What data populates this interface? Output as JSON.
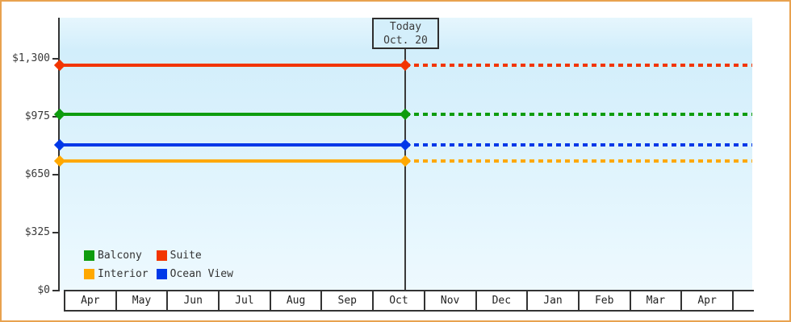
{
  "frame": {
    "border_color": "#e8a24f"
  },
  "chart_data": {
    "type": "line",
    "title": "",
    "x_categories": [
      "Apr",
      "May",
      "Jun",
      "Jul",
      "Aug",
      "Sep",
      "Oct",
      "Nov",
      "Dec",
      "Jan",
      "Feb",
      "Mar",
      "Apr"
    ],
    "y_axis": {
      "ticks": [
        {
          "label": "$0",
          "value": 0
        },
        {
          "label": "$325",
          "value": 325
        },
        {
          "label": "$650",
          "value": 650
        },
        {
          "label": "$975",
          "value": 975
        },
        {
          "label": "$1,300",
          "value": 1300
        }
      ],
      "ylim": [
        0,
        1300
      ]
    },
    "series": [
      {
        "name": "Suite",
        "color": "#f23500",
        "value": 1265,
        "style": "solid-then-dashed"
      },
      {
        "name": "Balcony",
        "color": "#0e9c0e",
        "value": 990,
        "style": "solid-then-dashed"
      },
      {
        "name": "Ocean View",
        "color": "#0038e8",
        "value": 815,
        "style": "solid-then-dashed"
      },
      {
        "name": "Interior",
        "color": "#ffa800",
        "value": 725,
        "style": "solid-then-dashed"
      }
    ],
    "today": {
      "label_line1": "Today",
      "label_line2": "Oct. 20",
      "month": "Oct",
      "day": 20
    },
    "annotations": "solid lines left of Today marker, dashed projection to the right; diamond markers at axis start and at Today line",
    "legend_position": "bottom-left-inside",
    "grid": false
  },
  "legend": {
    "items": [
      {
        "label": "Balcony",
        "color": "#0e9c0e"
      },
      {
        "label": "Suite",
        "color": "#f23500"
      },
      {
        "label": "Interior",
        "color": "#ffa800"
      },
      {
        "label": "Ocean View",
        "color": "#0038e8"
      }
    ]
  }
}
